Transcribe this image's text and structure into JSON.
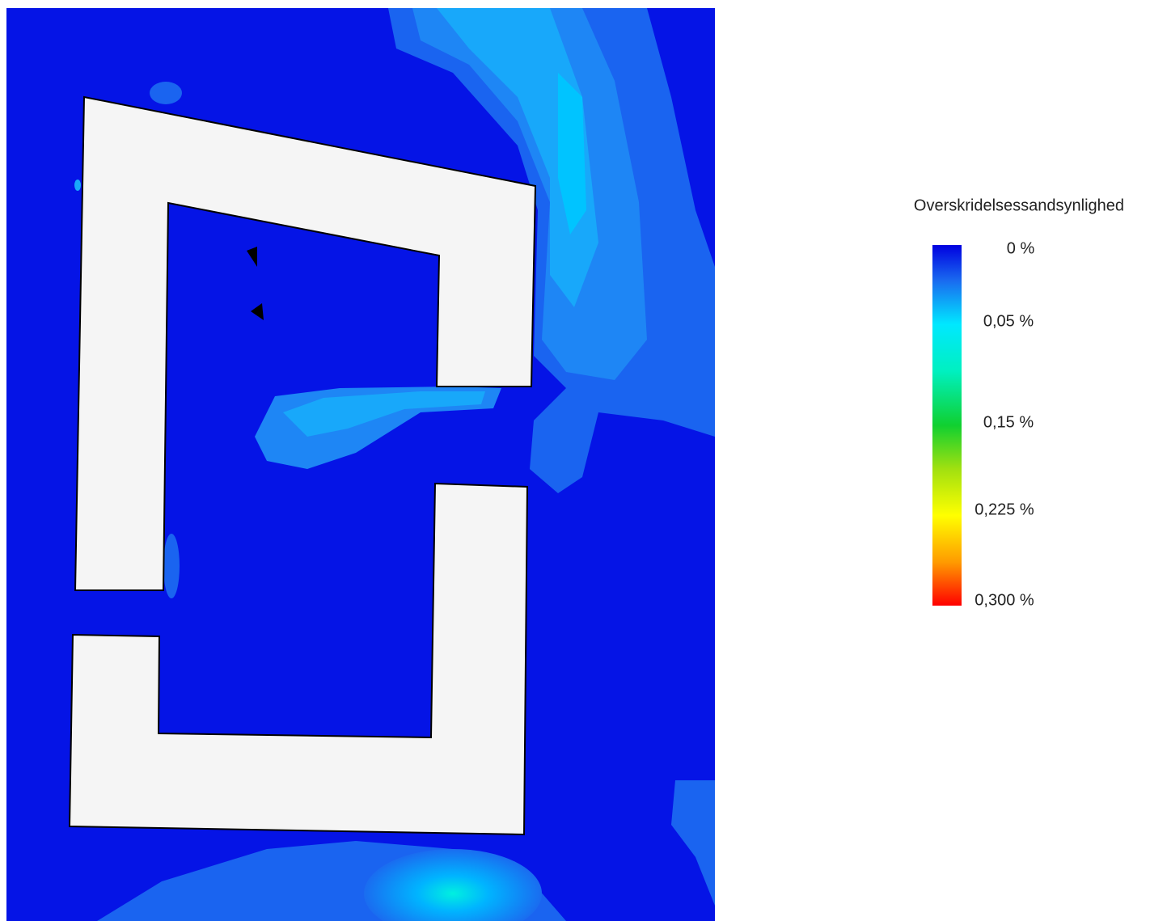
{
  "legend": {
    "title": "Overskridelsessandsynlighed",
    "labels": [
      "0 %",
      "0,05 %",
      "0,15 %",
      "0,225 %",
      "0,300 %"
    ]
  }
}
